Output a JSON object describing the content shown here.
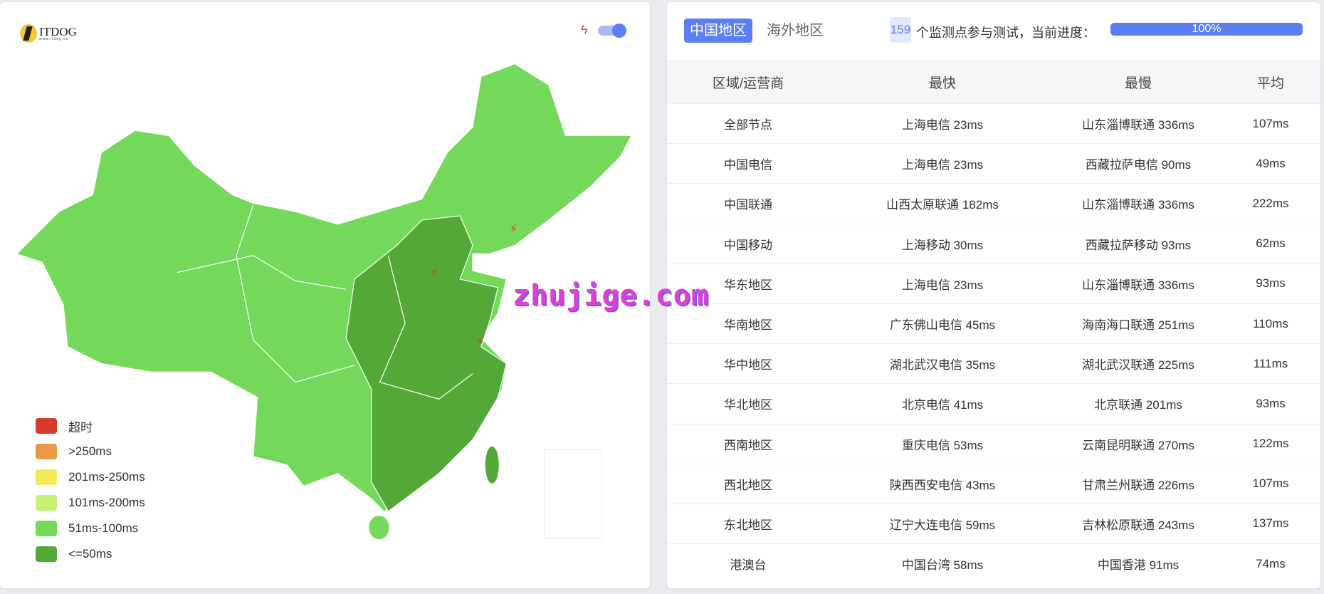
{
  "logo": {
    "name": "ITDOG",
    "url_text": "www.itdog.cn"
  },
  "map": {
    "legend": [
      {
        "label": "超时",
        "color": "#d93a2b"
      },
      {
        "label": ">250ms",
        "color": "#e99a47"
      },
      {
        "label": "201ms-250ms",
        "color": "#f3ea5a"
      },
      {
        "label": "101ms-200ms",
        "color": "#c6f174"
      },
      {
        "label": "51ms-100ms",
        "color": "#74d95a"
      },
      {
        "label": "<=50ms",
        "color": "#54a838"
      }
    ],
    "toggle_on": true
  },
  "tabs": [
    {
      "label": "中国地区",
      "active": true
    },
    {
      "label": "海外地区",
      "active": false
    }
  ],
  "status": {
    "count": "159",
    "text": "个监测点参与测试，当前进度：",
    "progress": 100,
    "progress_label": "100%"
  },
  "table": {
    "headers": [
      "区域/运营商",
      "最快",
      "最慢",
      "平均"
    ],
    "rows": [
      [
        "全部节点",
        "上海电信 23ms",
        "山东淄博联通 336ms",
        "107ms"
      ],
      [
        "中国电信",
        "上海电信 23ms",
        "西藏拉萨电信 90ms",
        "49ms"
      ],
      [
        "中国联通",
        "山西太原联通 182ms",
        "山东淄博联通 336ms",
        "222ms"
      ],
      [
        "中国移动",
        "上海移动 30ms",
        "西藏拉萨移动 93ms",
        "62ms"
      ],
      [
        "华东地区",
        "上海电信 23ms",
        "山东淄博联通 336ms",
        "93ms"
      ],
      [
        "华南地区",
        "广东佛山电信 45ms",
        "海南海口联通 251ms",
        "110ms"
      ],
      [
        "华中地区",
        "湖北武汉电信 35ms",
        "湖北武汉联通 225ms",
        "111ms"
      ],
      [
        "华北地区",
        "北京电信 41ms",
        "北京联通 201ms",
        "93ms"
      ],
      [
        "西南地区",
        "重庆电信 53ms",
        "云南昆明联通 270ms",
        "122ms"
      ],
      [
        "西北地区",
        "陕西西安电信 43ms",
        "甘肃兰州联通 226ms",
        "107ms"
      ],
      [
        "东北地区",
        "辽宁大连电信 59ms",
        "吉林松原联通 243ms",
        "137ms"
      ],
      [
        "港澳台",
        "中国台湾 58ms",
        "中国香港 91ms",
        "74ms"
      ]
    ]
  },
  "watermark": "zhujige.com"
}
